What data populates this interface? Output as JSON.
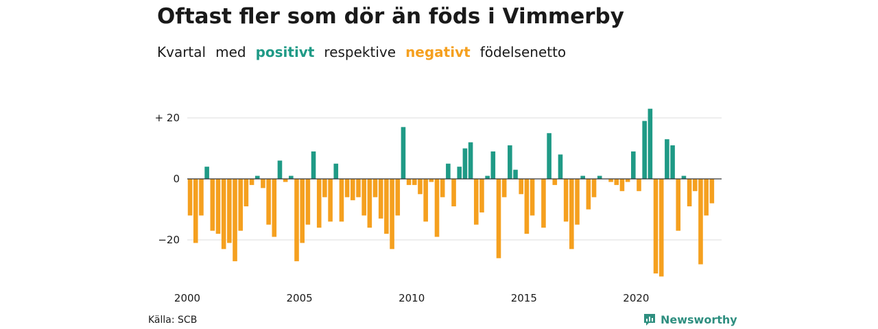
{
  "title": "Oftast fler som dör än föds i Vimmerby",
  "subtitle": {
    "w1": "Kvartal",
    "w2": "med",
    "w3": "positivt",
    "w4": "respektive",
    "w5": "negativt",
    "w6": "födelsenetto"
  },
  "source": "Källa: SCB",
  "brand": {
    "name": "Newsworthy",
    "icon": "newsworthy-logo-icon"
  },
  "colors": {
    "positive": "#1f9a86",
    "negative": "#f5a01f",
    "grid": "#dcdcdc",
    "zero": "#333333"
  },
  "chart_data": {
    "type": "bar",
    "title": "Oftast fler som dör än föds i Vimmerby",
    "subtitle": "Kvartal med positivt respektive negativt födelsenetto",
    "xlabel": "",
    "ylabel": "",
    "y_ticks": [
      {
        "value": 20,
        "label": "+ 20"
      },
      {
        "value": 0,
        "label": "0"
      },
      {
        "value": -20,
        "label": "−20"
      }
    ],
    "x_ticks": [
      {
        "value": 2000,
        "label": "2000"
      },
      {
        "value": 2005,
        "label": "2005"
      },
      {
        "value": 2010,
        "label": "2010"
      },
      {
        "value": 2015,
        "label": "2015"
      },
      {
        "value": 2020,
        "label": "2020"
      }
    ],
    "x_start": 2000,
    "quarters_per_year": 4,
    "ylim": [
      -33,
      25
    ],
    "grid": true,
    "values": [
      -12,
      -21,
      -12,
      4,
      -17,
      -18,
      -23,
      -21,
      -27,
      -17,
      -9,
      -2,
      1,
      -3,
      -15,
      -19,
      6,
      -1,
      1,
      -27,
      -21,
      -15,
      9,
      -16,
      -6,
      -14,
      5,
      -14,
      -6,
      -7,
      -6,
      -12,
      -16,
      -6,
      -13,
      -18,
      -23,
      -12,
      17,
      -2,
      -2,
      -5,
      -14,
      -1,
      -19,
      -6,
      5,
      -9,
      4,
      10,
      12,
      -15,
      -11,
      1,
      9,
      -26,
      -6,
      11,
      3,
      -5,
      -18,
      -12,
      0,
      -16,
      15,
      -2,
      8,
      -14,
      -23,
      -15,
      1,
      -10,
      -6,
      1,
      0,
      -1,
      -2,
      -4,
      -1,
      9,
      -4,
      19,
      23,
      -31,
      -32,
      13,
      11,
      -17,
      1,
      -9,
      -4,
      -28,
      -12,
      -8
    ]
  }
}
